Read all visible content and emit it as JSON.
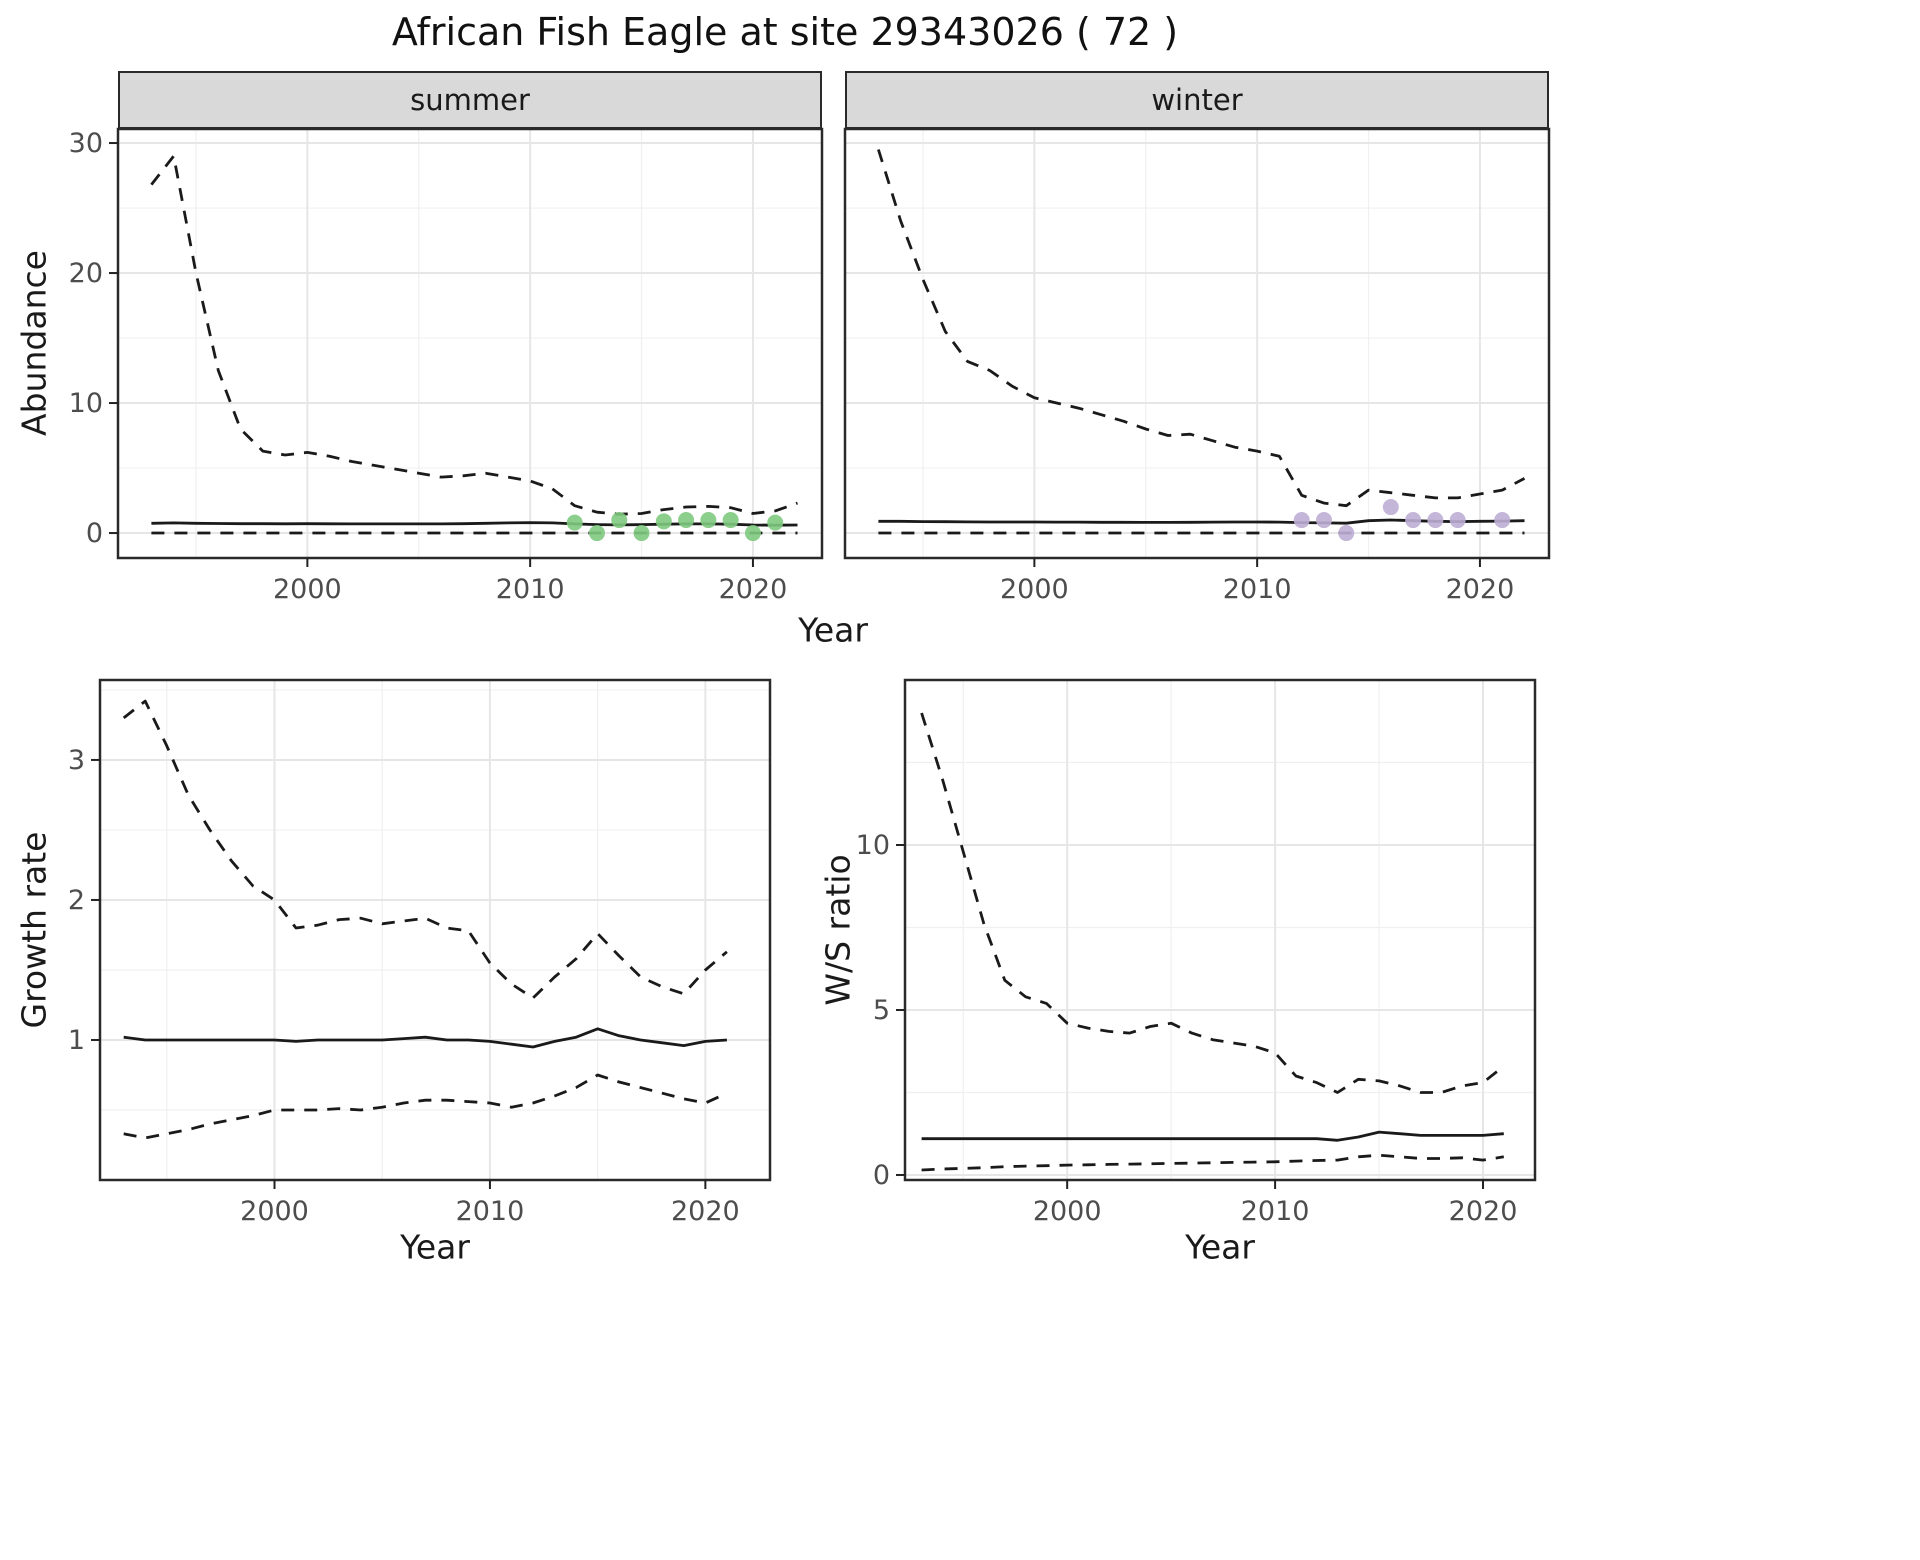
{
  "title": "African Fish Eagle at site 29343026 ( 72 )",
  "chart_data": [
    {
      "id": "abundance_summer",
      "type": "line",
      "facet_label": "summer",
      "xlabel": "Year",
      "ylabel": "Abundance",
      "xlim": [
        1991.5,
        2023.1
      ],
      "ylim": [
        -1.92,
        31.08
      ],
      "xticks": [
        2000,
        2010,
        2020
      ],
      "yticks": [
        0,
        10,
        20,
        30
      ],
      "grid": true,
      "series": [
        {
          "name": "upper-ci",
          "style": "dashed",
          "x": [
            1993,
            1994,
            1995,
            1996,
            1997,
            1998,
            1999,
            2000,
            2001,
            2002,
            2003,
            2004,
            2005,
            2006,
            2007,
            2008,
            2009,
            2010,
            2011,
            2012,
            2013,
            2014,
            2015,
            2016,
            2017,
            2018,
            2019,
            2020,
            2021,
            2022
          ],
          "y": [
            26.8,
            29.0,
            20.0,
            12.5,
            8.0,
            6.3,
            6.0,
            6.2,
            5.9,
            5.5,
            5.2,
            4.9,
            4.6,
            4.3,
            4.4,
            4.6,
            4.3,
            4.0,
            3.4,
            2.1,
            1.6,
            1.45,
            1.5,
            1.8,
            2.0,
            2.05,
            1.95,
            1.5,
            1.7,
            2.3
          ]
        },
        {
          "name": "median",
          "style": "solid",
          "x": [
            1993,
            1994,
            1995,
            1996,
            1997,
            1998,
            1999,
            2000,
            2001,
            2002,
            2003,
            2004,
            2005,
            2006,
            2007,
            2008,
            2009,
            2010,
            2011,
            2012,
            2013,
            2014,
            2015,
            2016,
            2017,
            2018,
            2019,
            2020,
            2021,
            2022
          ],
          "y": [
            0.75,
            0.78,
            0.75,
            0.73,
            0.72,
            0.72,
            0.71,
            0.72,
            0.71,
            0.7,
            0.7,
            0.7,
            0.7,
            0.7,
            0.72,
            0.75,
            0.78,
            0.8,
            0.78,
            0.7,
            0.65,
            0.63,
            0.65,
            0.68,
            0.7,
            0.7,
            0.68,
            0.62,
            0.6,
            0.62
          ]
        },
        {
          "name": "lower-ci",
          "style": "dashed",
          "x": [
            1993,
            1994,
            1995,
            1996,
            1997,
            1998,
            1999,
            2000,
            2001,
            2002,
            2003,
            2004,
            2005,
            2006,
            2007,
            2008,
            2009,
            2010,
            2011,
            2012,
            2013,
            2014,
            2015,
            2016,
            2017,
            2018,
            2019,
            2020,
            2021,
            2022
          ],
          "y": [
            0,
            0,
            0,
            0,
            0,
            0,
            0,
            0,
            0,
            0,
            0,
            0,
            0,
            0,
            0,
            0,
            0,
            0,
            0,
            0,
            0,
            0,
            0,
            0,
            0,
            0,
            0,
            0,
            0,
            0
          ]
        }
      ],
      "points": {
        "name": "observed-counts",
        "color": "#7FC97F",
        "x": [
          2012,
          2013,
          2014,
          2015,
          2016,
          2017,
          2018,
          2019,
          2020,
          2021
        ],
        "y": [
          0.8,
          0.0,
          1.0,
          0.0,
          0.9,
          1.0,
          1.0,
          1.0,
          0.0,
          0.8
        ]
      }
    },
    {
      "id": "abundance_winter",
      "type": "line",
      "facet_label": "winter",
      "xlabel": "Year",
      "ylabel": "Abundance",
      "xlim": [
        1991.5,
        2023.1
      ],
      "ylim": [
        -1.92,
        31.08
      ],
      "xticks": [
        2000,
        2010,
        2020
      ],
      "yticks": [
        0,
        10,
        20,
        30
      ],
      "grid": true,
      "series": [
        {
          "name": "upper-ci",
          "style": "dashed",
          "x": [
            1993,
            1994,
            1995,
            1996,
            1997,
            1998,
            1999,
            2000,
            2001,
            2002,
            2003,
            2004,
            2005,
            2006,
            2007,
            2008,
            2009,
            2010,
            2011,
            2012,
            2013,
            2014,
            2015,
            2016,
            2017,
            2018,
            2019,
            2020,
            2021,
            2022
          ],
          "y": [
            29.5,
            24.0,
            19.5,
            15.5,
            13.2,
            12.5,
            11.3,
            10.4,
            10.0,
            9.6,
            9.1,
            8.6,
            8.0,
            7.5,
            7.6,
            7.1,
            6.6,
            6.3,
            5.9,
            2.9,
            2.3,
            2.1,
            3.3,
            3.1,
            2.9,
            2.7,
            2.7,
            3.0,
            3.3,
            4.2
          ]
        },
        {
          "name": "median",
          "style": "solid",
          "x": [
            1993,
            1994,
            1995,
            1996,
            1997,
            1998,
            1999,
            2000,
            2001,
            2002,
            2003,
            2004,
            2005,
            2006,
            2007,
            2008,
            2009,
            2010,
            2011,
            2012,
            2013,
            2014,
            2015,
            2016,
            2017,
            2018,
            2019,
            2020,
            2021,
            2022
          ],
          "y": [
            0.9,
            0.9,
            0.88,
            0.87,
            0.86,
            0.85,
            0.85,
            0.85,
            0.84,
            0.84,
            0.83,
            0.83,
            0.82,
            0.82,
            0.83,
            0.84,
            0.85,
            0.85,
            0.84,
            0.8,
            0.78,
            0.76,
            0.95,
            1.0,
            0.95,
            0.9,
            0.88,
            0.9,
            0.92,
            0.95
          ]
        },
        {
          "name": "lower-ci",
          "style": "dashed",
          "x": [
            1993,
            1994,
            1995,
            1996,
            1997,
            1998,
            1999,
            2000,
            2001,
            2002,
            2003,
            2004,
            2005,
            2006,
            2007,
            2008,
            2009,
            2010,
            2011,
            2012,
            2013,
            2014,
            2015,
            2016,
            2017,
            2018,
            2019,
            2020,
            2021,
            2022
          ],
          "y": [
            0,
            0,
            0,
            0,
            0,
            0,
            0,
            0,
            0,
            0,
            0,
            0,
            0,
            0,
            0,
            0,
            0,
            0,
            0,
            0,
            0,
            0,
            0,
            0,
            0,
            0,
            0,
            0,
            0,
            0
          ]
        }
      ],
      "points": {
        "name": "observed-counts",
        "color": "#BEAED4",
        "x": [
          2012,
          2013,
          2014,
          2016,
          2017,
          2018,
          2019,
          2021
        ],
        "y": [
          1.0,
          1.0,
          0.0,
          2.0,
          1.0,
          1.0,
          1.0,
          1.0
        ]
      }
    },
    {
      "id": "growth_rate",
      "type": "line",
      "facet_label": "",
      "xlabel": "Year",
      "ylabel": "Growth rate",
      "xlim": [
        1991.9,
        2023.0
      ],
      "ylim": [
        0,
        3.571
      ],
      "xticks": [
        2000,
        2010,
        2020
      ],
      "yticks": [
        1,
        2,
        3
      ],
      "grid": true,
      "series": [
        {
          "name": "upper-ci",
          "style": "dashed",
          "x": [
            1993,
            1994,
            1995,
            1996,
            1997,
            1998,
            1999,
            2000,
            2001,
            2002,
            2003,
            2004,
            2005,
            2006,
            2007,
            2008,
            2009,
            2010,
            2011,
            2012,
            2013,
            2014,
            2015,
            2016,
            2017,
            2018,
            2019,
            2020,
            2021
          ],
          "y": [
            3.3,
            3.42,
            3.1,
            2.75,
            2.5,
            2.28,
            2.1,
            2.0,
            1.8,
            1.82,
            1.86,
            1.87,
            1.83,
            1.85,
            1.87,
            1.8,
            1.78,
            1.55,
            1.4,
            1.3,
            1.45,
            1.58,
            1.76,
            1.6,
            1.45,
            1.38,
            1.33,
            1.5,
            1.63
          ]
        },
        {
          "name": "median",
          "style": "solid",
          "x": [
            1993,
            1994,
            1995,
            1996,
            1997,
            1998,
            1999,
            2000,
            2001,
            2002,
            2003,
            2004,
            2005,
            2006,
            2007,
            2008,
            2009,
            2010,
            2011,
            2012,
            2013,
            2014,
            2015,
            2016,
            2017,
            2018,
            2019,
            2020,
            2021
          ],
          "y": [
            1.02,
            1.0,
            1.0,
            1.0,
            1.0,
            1.0,
            1.0,
            1.0,
            0.99,
            1.0,
            1.0,
            1.0,
            1.0,
            1.01,
            1.02,
            1.0,
            1.0,
            0.99,
            0.97,
            0.95,
            0.99,
            1.02,
            1.08,
            1.03,
            1.0,
            0.98,
            0.96,
            0.99,
            1.0
          ]
        },
        {
          "name": "lower-ci",
          "style": "dashed",
          "x": [
            1993,
            1994,
            1995,
            1996,
            1997,
            1998,
            1999,
            2000,
            2001,
            2002,
            2003,
            2004,
            2005,
            2006,
            2007,
            2008,
            2009,
            2010,
            2011,
            2012,
            2013,
            2014,
            2015,
            2016,
            2017,
            2018,
            2019,
            2020,
            2021
          ],
          "y": [
            0.33,
            0.3,
            0.33,
            0.36,
            0.4,
            0.43,
            0.46,
            0.5,
            0.5,
            0.5,
            0.51,
            0.5,
            0.52,
            0.55,
            0.57,
            0.57,
            0.56,
            0.55,
            0.52,
            0.55,
            0.6,
            0.66,
            0.75,
            0.7,
            0.66,
            0.62,
            0.58,
            0.55,
            0.62
          ]
        }
      ],
      "points": null
    },
    {
      "id": "ws_ratio",
      "type": "line",
      "facet_label": "",
      "xlabel": "Year",
      "ylabel": "W/S ratio",
      "xlim": [
        1992.2,
        2022.5
      ],
      "ylim": [
        -0.152,
        15.0
      ],
      "xticks": [
        2000,
        2010,
        2020
      ],
      "yticks": [
        0,
        5,
        10
      ],
      "grid": true,
      "series": [
        {
          "name": "upper-ci",
          "style": "dashed",
          "x": [
            1993,
            1994,
            1995,
            1996,
            1997,
            1998,
            1999,
            2000,
            2001,
            2002,
            2003,
            2004,
            2005,
            2006,
            2007,
            2008,
            2009,
            2010,
            2011,
            2012,
            2013,
            2014,
            2015,
            2016,
            2017,
            2018,
            2019,
            2020,
            2021
          ],
          "y": [
            14.0,
            12.0,
            9.8,
            7.6,
            5.9,
            5.4,
            5.2,
            4.6,
            4.45,
            4.35,
            4.3,
            4.5,
            4.6,
            4.3,
            4.1,
            4.0,
            3.9,
            3.7,
            3.0,
            2.8,
            2.5,
            2.9,
            2.85,
            2.7,
            2.5,
            2.5,
            2.7,
            2.8,
            3.3
          ]
        },
        {
          "name": "median",
          "style": "solid",
          "x": [
            1993,
            1994,
            1995,
            1996,
            1997,
            1998,
            1999,
            2000,
            2001,
            2002,
            2003,
            2004,
            2005,
            2006,
            2007,
            2008,
            2009,
            2010,
            2011,
            2012,
            2013,
            2014,
            2015,
            2016,
            2017,
            2018,
            2019,
            2020,
            2021
          ],
          "y": [
            1.1,
            1.1,
            1.1,
            1.1,
            1.1,
            1.1,
            1.1,
            1.1,
            1.1,
            1.1,
            1.1,
            1.1,
            1.1,
            1.1,
            1.1,
            1.1,
            1.1,
            1.1,
            1.1,
            1.1,
            1.05,
            1.15,
            1.3,
            1.25,
            1.2,
            1.2,
            1.2,
            1.2,
            1.25
          ]
        },
        {
          "name": "lower-ci",
          "style": "dashed",
          "x": [
            1993,
            1994,
            1995,
            1996,
            1997,
            1998,
            1999,
            2000,
            2001,
            2002,
            2003,
            2004,
            2005,
            2006,
            2007,
            2008,
            2009,
            2010,
            2011,
            2012,
            2013,
            2014,
            2015,
            2016,
            2017,
            2018,
            2019,
            2020,
            2021
          ],
          "y": [
            0.15,
            0.18,
            0.2,
            0.22,
            0.25,
            0.27,
            0.28,
            0.3,
            0.31,
            0.32,
            0.33,
            0.34,
            0.35,
            0.36,
            0.37,
            0.38,
            0.39,
            0.4,
            0.42,
            0.44,
            0.45,
            0.55,
            0.6,
            0.55,
            0.5,
            0.5,
            0.52,
            0.45,
            0.55
          ]
        }
      ],
      "points": null
    }
  ]
}
